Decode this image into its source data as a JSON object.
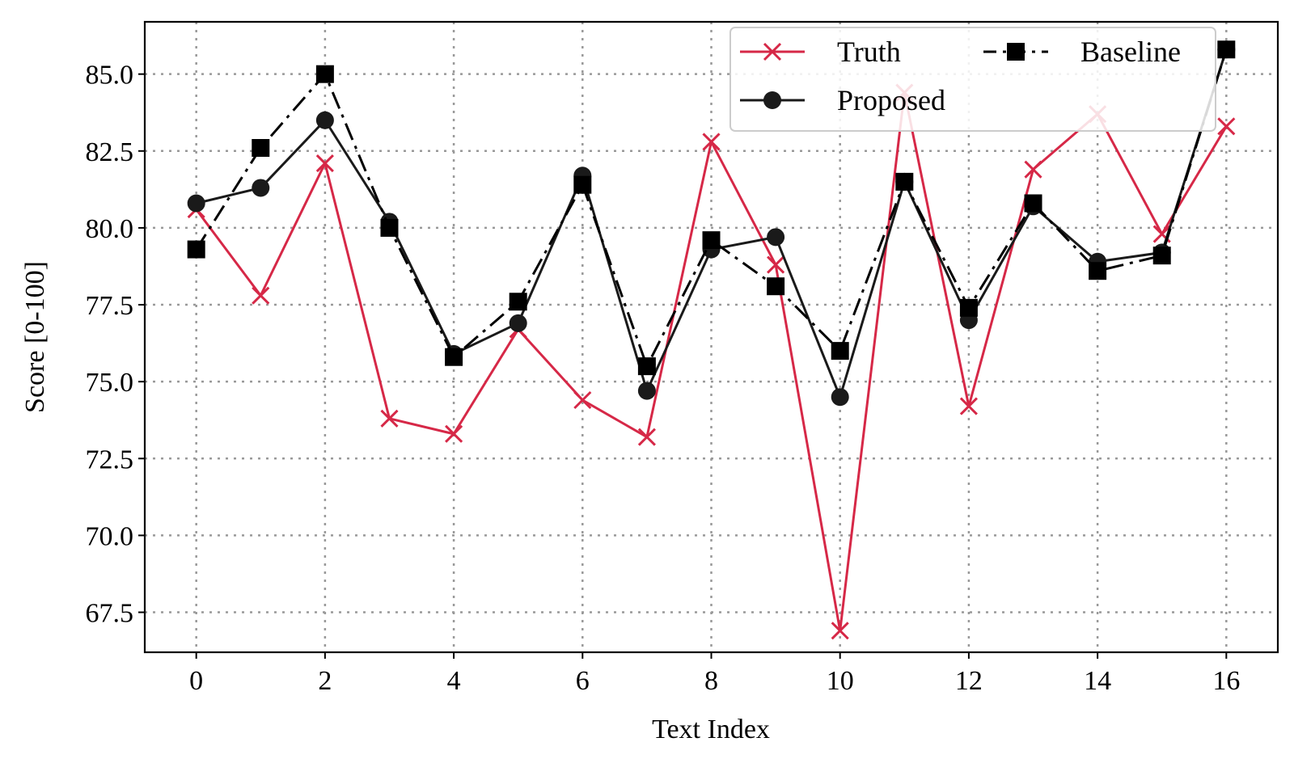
{
  "chart_data": {
    "type": "line",
    "x": [
      0,
      1,
      2,
      3,
      4,
      5,
      6,
      7,
      8,
      9,
      10,
      11,
      12,
      13,
      14,
      15,
      16
    ],
    "series": [
      {
        "name": "Truth",
        "color": "#d62847",
        "marker": "x",
        "linestyle": "solid",
        "values": [
          80.6,
          77.8,
          82.1,
          73.8,
          73.3,
          76.7,
          74.4,
          73.2,
          82.8,
          78.8,
          66.9,
          84.4,
          74.2,
          81.9,
          83.7,
          79.8,
          83.3
        ]
      },
      {
        "name": "Proposed",
        "color": "#1a1a1a",
        "marker": "circle",
        "linestyle": "solid",
        "values": [
          80.8,
          81.3,
          83.5,
          80.2,
          75.9,
          76.9,
          81.7,
          74.7,
          79.3,
          79.7,
          74.5,
          81.5,
          77.0,
          80.7,
          78.9,
          79.2,
          85.8
        ]
      },
      {
        "name": "Baseline",
        "color": "#000000",
        "marker": "square",
        "linestyle": "dashdot",
        "values": [
          79.3,
          82.6,
          85.0,
          80.0,
          75.8,
          77.6,
          81.4,
          75.5,
          79.6,
          78.1,
          76.0,
          81.5,
          77.4,
          80.8,
          78.6,
          79.1,
          85.8
        ]
      }
    ],
    "xlabel": "Text Index",
    "ylabel": "Score [0-100]",
    "xticks": [
      "0",
      "2",
      "4",
      "6",
      "8",
      "10",
      "12",
      "14",
      "16"
    ],
    "xtick_values": [
      0,
      2,
      4,
      6,
      8,
      10,
      12,
      14,
      16
    ],
    "yticks": [
      "67.5",
      "70.0",
      "72.5",
      "75.0",
      "77.5",
      "80.0",
      "82.5",
      "85.0"
    ],
    "ytick_values": [
      67.5,
      70.0,
      72.5,
      75.0,
      77.5,
      80.0,
      82.5,
      85.0
    ],
    "xlim": [
      -0.8,
      16.8
    ],
    "ylim": [
      66.2,
      86.7
    ],
    "grid": true,
    "legend_position": "top-right",
    "legend_columns": 2
  }
}
